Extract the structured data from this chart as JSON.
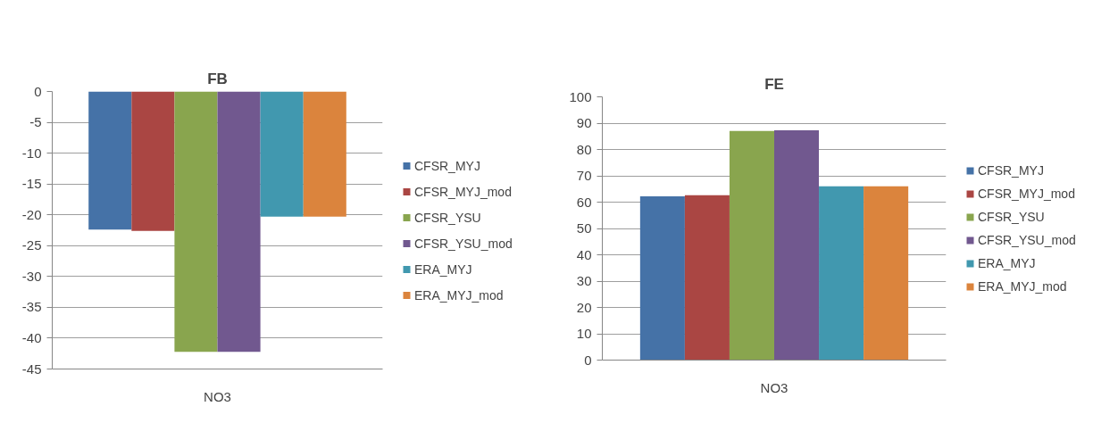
{
  "chart_data": [
    {
      "type": "bar",
      "title": "FB",
      "categories": [
        "NO3"
      ],
      "series": [
        {
          "name": "CFSR_MYJ",
          "color": "#4572a7",
          "values": [
            -22.4
          ]
        },
        {
          "name": "CFSR_MYJ_mod",
          "color": "#aa4643",
          "values": [
            -22.6
          ]
        },
        {
          "name": "CFSR_YSU",
          "color": "#89a54e",
          "values": [
            -42.2
          ]
        },
        {
          "name": "CFSR_YSU_mod",
          "color": "#71588f",
          "values": [
            -42.2
          ]
        },
        {
          "name": "ERA_MYJ",
          "color": "#4198af",
          "values": [
            -20.3
          ]
        },
        {
          "name": "ERA_MYJ_mod",
          "color": "#db843d",
          "values": [
            -20.3
          ]
        }
      ],
      "ylim": [
        -45,
        0
      ],
      "yticks": [
        -45,
        -40,
        -35,
        -30,
        -25,
        -20,
        -15,
        -10,
        -5,
        0
      ],
      "grid": "y",
      "legend": "right"
    },
    {
      "type": "bar",
      "title": "FE",
      "categories": [
        "NO3"
      ],
      "series": [
        {
          "name": "CFSR_MYJ",
          "color": "#4572a7",
          "values": [
            62.2
          ]
        },
        {
          "name": "CFSR_MYJ_mod",
          "color": "#aa4643",
          "values": [
            62.6
          ]
        },
        {
          "name": "CFSR_YSU",
          "color": "#89a54e",
          "values": [
            87.0
          ]
        },
        {
          "name": "CFSR_YSU_mod",
          "color": "#71588f",
          "values": [
            87.3
          ]
        },
        {
          "name": "ERA_MYJ",
          "color": "#4198af",
          "values": [
            66.0
          ]
        },
        {
          "name": "ERA_MYJ_mod",
          "color": "#db843d",
          "values": [
            66.0
          ]
        }
      ],
      "ylim": [
        0,
        100
      ],
      "yticks": [
        0,
        10,
        20,
        30,
        40,
        50,
        60,
        70,
        80,
        90,
        100
      ],
      "grid": "y",
      "legend": "right"
    }
  ]
}
